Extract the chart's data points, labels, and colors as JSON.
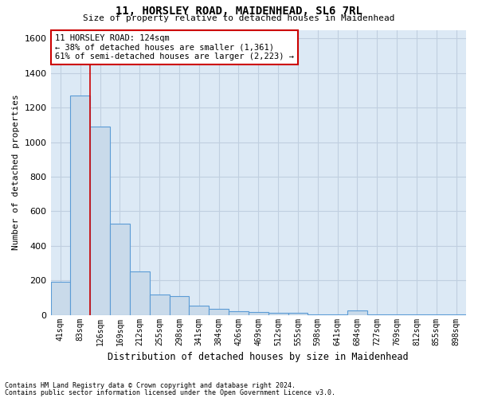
{
  "title1": "11, HORSLEY ROAD, MAIDENHEAD, SL6 7RL",
  "title2": "Size of property relative to detached houses in Maidenhead",
  "xlabel": "Distribution of detached houses by size in Maidenhead",
  "ylabel": "Number of detached properties",
  "footnote1": "Contains HM Land Registry data © Crown copyright and database right 2024.",
  "footnote2": "Contains public sector information licensed under the Open Government Licence v3.0.",
  "categories": [
    "41sqm",
    "83sqm",
    "126sqm",
    "169sqm",
    "212sqm",
    "255sqm",
    "298sqm",
    "341sqm",
    "384sqm",
    "426sqm",
    "469sqm",
    "512sqm",
    "555sqm",
    "598sqm",
    "641sqm",
    "684sqm",
    "727sqm",
    "769sqm",
    "812sqm",
    "855sqm",
    "898sqm"
  ],
  "values": [
    190,
    1270,
    1090,
    530,
    250,
    120,
    110,
    55,
    35,
    20,
    15,
    10,
    10,
    5,
    5,
    25,
    5,
    5,
    5,
    5,
    5
  ],
  "bar_color": "#c9daea",
  "bar_edge_color": "#5b9bd5",
  "bar_linewidth": 0.8,
  "grid_color": "#c0cfe0",
  "bg_color": "#dce9f5",
  "property_line_color": "#cc0000",
  "property_line_x": 1.5,
  "annotation_text": "11 HORSLEY ROAD: 124sqm\n← 38% of detached houses are smaller (1,361)\n61% of semi-detached houses are larger (2,223) →",
  "annotation_box_color": "#ffffff",
  "annotation_box_edge": "#cc0000",
  "ylim": [
    0,
    1650
  ],
  "yticks": [
    0,
    200,
    400,
    600,
    800,
    1000,
    1200,
    1400,
    1600
  ]
}
